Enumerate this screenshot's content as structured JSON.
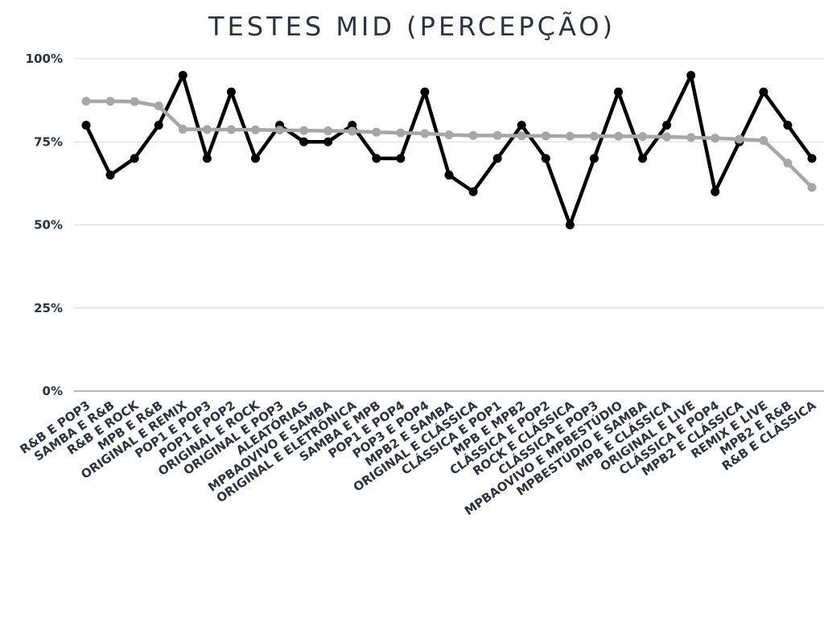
{
  "chart_data": {
    "type": "line",
    "title": "TESTES MID (PERCEPÇÃO)",
    "xlabel": "",
    "ylabel": "",
    "ylim": [
      0,
      100
    ],
    "yticks": [
      "0%",
      "25%",
      "50%",
      "75%",
      "100%"
    ],
    "ytick_values": [
      0,
      25,
      50,
      75,
      100
    ],
    "grid": true,
    "categories": [
      "R&B E POP3",
      "SAMBA E R&B",
      "R&B E ROCK",
      "MPB E R&B",
      "ORIGINAL E REMIX",
      "POP1 E POP3",
      "POP1 E POP2",
      "ORIGINAL E ROCK",
      "ORIGINAL E POP3",
      "ALEATÓRIAS",
      "MPBAOVIVO E SAMBA",
      "ORIGINAL E ELETRÔNICA",
      "SAMBA E MPB",
      "POP1 E POP4",
      "POP3 E POP4",
      "MPB2 E SAMBA",
      "ORIGINAL E CLÁSSICA",
      "CLÁSSICA E POP1",
      "MPB E MPB2",
      "CLÁSSICA E POP2",
      "ROCK E CLÁSSICA",
      "CLÁSSICA E POP3",
      "MPBAOVIVO E MPBESTÚDIO",
      "MPBESTÚDIO E SAMBA",
      "MPB E CLÁSSICA",
      "ORIGINAL E LIVE",
      "CLÁSSICA E POP4",
      "MPB2 E CLÁSSICA",
      "REMIX E LIVE",
      "MPB2 E R&B",
      "R&B E CLÁSSICA"
    ],
    "series": [
      {
        "color": "#000000",
        "values": [
          80,
          65,
          70,
          80,
          95,
          70,
          90,
          70,
          80,
          75,
          75,
          80,
          70,
          70,
          90,
          65,
          60,
          70,
          80,
          70,
          50,
          70,
          90,
          70,
          80,
          95,
          60,
          75,
          90,
          80,
          70
        ]
      },
      {
        "color": "#a6a6a6",
        "values": [
          87.2,
          87.2,
          87.1,
          85.8,
          78.8,
          78.7,
          78.7,
          78.6,
          78.5,
          78.4,
          78.3,
          78.2,
          77.9,
          77.7,
          77.5,
          77.1,
          76.9,
          76.9,
          76.8,
          76.8,
          76.7,
          76.7,
          76.7,
          76.6,
          76.5,
          76.3,
          76.1,
          75.8,
          75.4,
          68.6,
          61.3
        ]
      }
    ]
  }
}
